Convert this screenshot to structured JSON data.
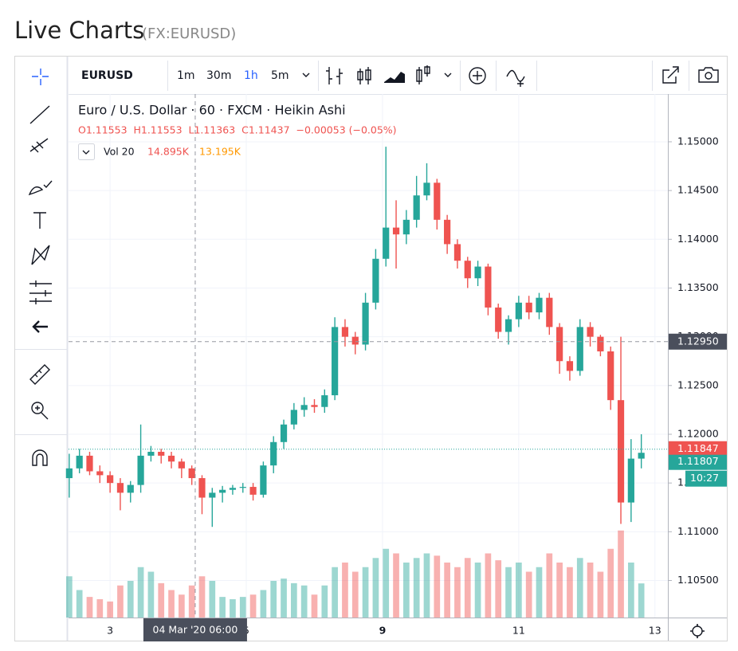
{
  "header": {
    "title": "Live Charts",
    "subtitle": "(FX:EURUSD)"
  },
  "toolbar": {
    "symbol": "EURUSD",
    "intervals": [
      "1m",
      "30m",
      "1h",
      "5m"
    ]
  },
  "legend": {
    "name": "Euro / U.S. Dollar · 60 · FXCM · Heikin Ashi",
    "ohlc": "O1.11553  H1.11553  L1.11363  C1.11437  −0.00053 (−0.05%)",
    "volume_name": "Vol 20",
    "volume_value": "14.895K",
    "volume_ma": "13.195K"
  },
  "chart_data": {
    "type": "candlestick",
    "ylim": [
      1.1012,
      1.1549
    ],
    "yticks": [
      {
        "value": 1.105,
        "label": "1.10500"
      },
      {
        "value": 1.11,
        "label": "1.11000"
      },
      {
        "value": 1.115,
        "label": "1.11500"
      },
      {
        "value": 1.12,
        "label": "1.12000"
      },
      {
        "value": 1.125,
        "label": "1.12500"
      },
      {
        "value": 1.13,
        "label": "1.13000"
      },
      {
        "value": 1.135,
        "label": "1.13500"
      },
      {
        "value": 1.14,
        "label": "1.14000"
      },
      {
        "value": 1.145,
        "label": "1.14500"
      },
      {
        "value": 1.15,
        "label": "1.15000"
      }
    ],
    "xlim": [
      2.39,
      11.19
    ],
    "xticks": [
      3,
      5,
      {
        "value": 7,
        "label": "9"
      },
      {
        "value": 9,
        "label": "11"
      },
      {
        "value": 11,
        "label": "13"
      }
    ],
    "grid": true,
    "up_color": "#26a69a",
    "down_color": "#ef5350",
    "x": [
      2.4,
      2.55,
      2.7,
      2.85,
      3.0,
      3.15,
      3.3,
      3.45,
      3.6,
      3.75,
      3.9,
      4.05,
      4.2,
      4.35,
      4.5,
      4.65,
      4.8,
      4.95,
      5.1,
      5.25,
      5.4,
      5.55,
      5.7,
      5.85,
      6.0,
      6.15,
      6.3,
      6.45,
      6.6,
      6.75,
      6.9,
      7.05,
      7.2,
      7.35,
      7.5,
      7.65,
      7.8,
      7.95,
      8.1,
      8.25,
      8.4,
      8.55,
      8.7,
      8.85,
      9.0,
      9.15,
      9.3,
      9.45,
      9.6,
      9.75,
      9.9,
      10.05,
      10.2,
      10.35,
      10.5,
      10.65,
      10.8
    ],
    "open": [
      1.1155,
      1.1165,
      1.1178,
      1.1162,
      1.1158,
      1.115,
      1.114,
      1.1148,
      1.1178,
      1.1182,
      1.1178,
      1.1172,
      1.1165,
      1.1155,
      1.1135,
      1.114,
      1.1143,
      1.1145,
      1.1146,
      1.1138,
      1.1168,
      1.1192,
      1.121,
      1.1225,
      1.123,
      1.1228,
      1.124,
      1.131,
      1.13,
      1.1292,
      1.1335,
      1.138,
      1.1412,
      1.1405,
      1.142,
      1.1445,
      1.1458,
      1.142,
      1.1395,
      1.1378,
      1.136,
      1.1372,
      1.133,
      1.1305,
      1.1318,
      1.1335,
      1.1325,
      1.134,
      1.131,
      1.1275,
      1.1265,
      1.131,
      1.13,
      1.1285,
      1.1235,
      1.113,
      1.1175
    ],
    "high": [
      1.118,
      1.1185,
      1.1182,
      1.1168,
      1.1162,
      1.1155,
      1.1152,
      1.121,
      1.1188,
      1.1185,
      1.1182,
      1.1175,
      1.1168,
      1.1158,
      1.1145,
      1.1147,
      1.1148,
      1.115,
      1.115,
      1.1172,
      1.1198,
      1.1215,
      1.1232,
      1.1238,
      1.1236,
      1.1246,
      1.132,
      1.1318,
      1.1305,
      1.1345,
      1.139,
      1.1495,
      1.144,
      1.143,
      1.1465,
      1.1478,
      1.1462,
      1.1425,
      1.14,
      1.1382,
      1.1378,
      1.1375,
      1.1334,
      1.1322,
      1.1342,
      1.1342,
      1.1345,
      1.1345,
      1.1314,
      1.128,
      1.1318,
      1.1315,
      1.1302,
      1.129,
      1.13,
      1.1195,
      1.12
    ],
    "low": [
      1.1135,
      1.116,
      1.1158,
      1.115,
      1.114,
      1.1122,
      1.113,
      1.114,
      1.1172,
      1.117,
      1.1165,
      1.1155,
      1.1148,
      1.1118,
      1.1105,
      1.113,
      1.1138,
      1.114,
      1.1132,
      1.1135,
      1.116,
      1.1185,
      1.1205,
      1.1218,
      1.1222,
      1.1222,
      1.1235,
      1.129,
      1.1282,
      1.1286,
      1.1328,
      1.1372,
      1.137,
      1.1395,
      1.1412,
      1.144,
      1.141,
      1.1385,
      1.137,
      1.135,
      1.1352,
      1.1322,
      1.1298,
      1.1292,
      1.131,
      1.1318,
      1.1318,
      1.1302,
      1.1262,
      1.1255,
      1.126,
      1.129,
      1.128,
      1.1225,
      1.1108,
      1.111,
      1.1165
    ],
    "close": [
      1.1165,
      1.1178,
      1.1162,
      1.1158,
      1.115,
      1.114,
      1.1148,
      1.1178,
      1.1182,
      1.1178,
      1.1172,
      1.1165,
      1.1155,
      1.1135,
      1.114,
      1.1143,
      1.1145,
      1.1146,
      1.1138,
      1.1168,
      1.1192,
      1.121,
      1.1225,
      1.123,
      1.1228,
      1.124,
      1.131,
      1.13,
      1.1292,
      1.1335,
      1.138,
      1.1412,
      1.1405,
      1.142,
      1.1445,
      1.1458,
      1.142,
      1.1395,
      1.1378,
      1.136,
      1.1372,
      1.133,
      1.1305,
      1.1318,
      1.1335,
      1.1325,
      1.134,
      1.131,
      1.1275,
      1.1265,
      1.131,
      1.13,
      1.1285,
      1.1235,
      1.113,
      1.1175,
      1.1181
    ],
    "volume": [
      18000,
      12000,
      9000,
      8000,
      7000,
      14000,
      16000,
      22000,
      20000,
      15000,
      12000,
      10000,
      14000,
      18000,
      16000,
      9000,
      8000,
      9000,
      10000,
      12000,
      16000,
      17000,
      15000,
      14000,
      10000,
      14000,
      22000,
      24000,
      20000,
      22000,
      26000,
      30000,
      28000,
      24000,
      26000,
      28000,
      27000,
      24000,
      22000,
      26000,
      24000,
      28000,
      25000,
      22000,
      24000,
      20000,
      22000,
      28000,
      24000,
      22000,
      26000,
      24000,
      20000,
      30000,
      38000,
      24000,
      14895
    ],
    "volume_lim": [
      0,
      40000
    ],
    "crosshair_price": {
      "value": 1.1295,
      "label": "1.12950"
    },
    "crosshair_time": {
      "value": 4.25,
      "label": "04 Mar '20 06:00"
    },
    "last_price": 1.11847,
    "bid_price": 1.11807,
    "countdown": "10:27"
  }
}
